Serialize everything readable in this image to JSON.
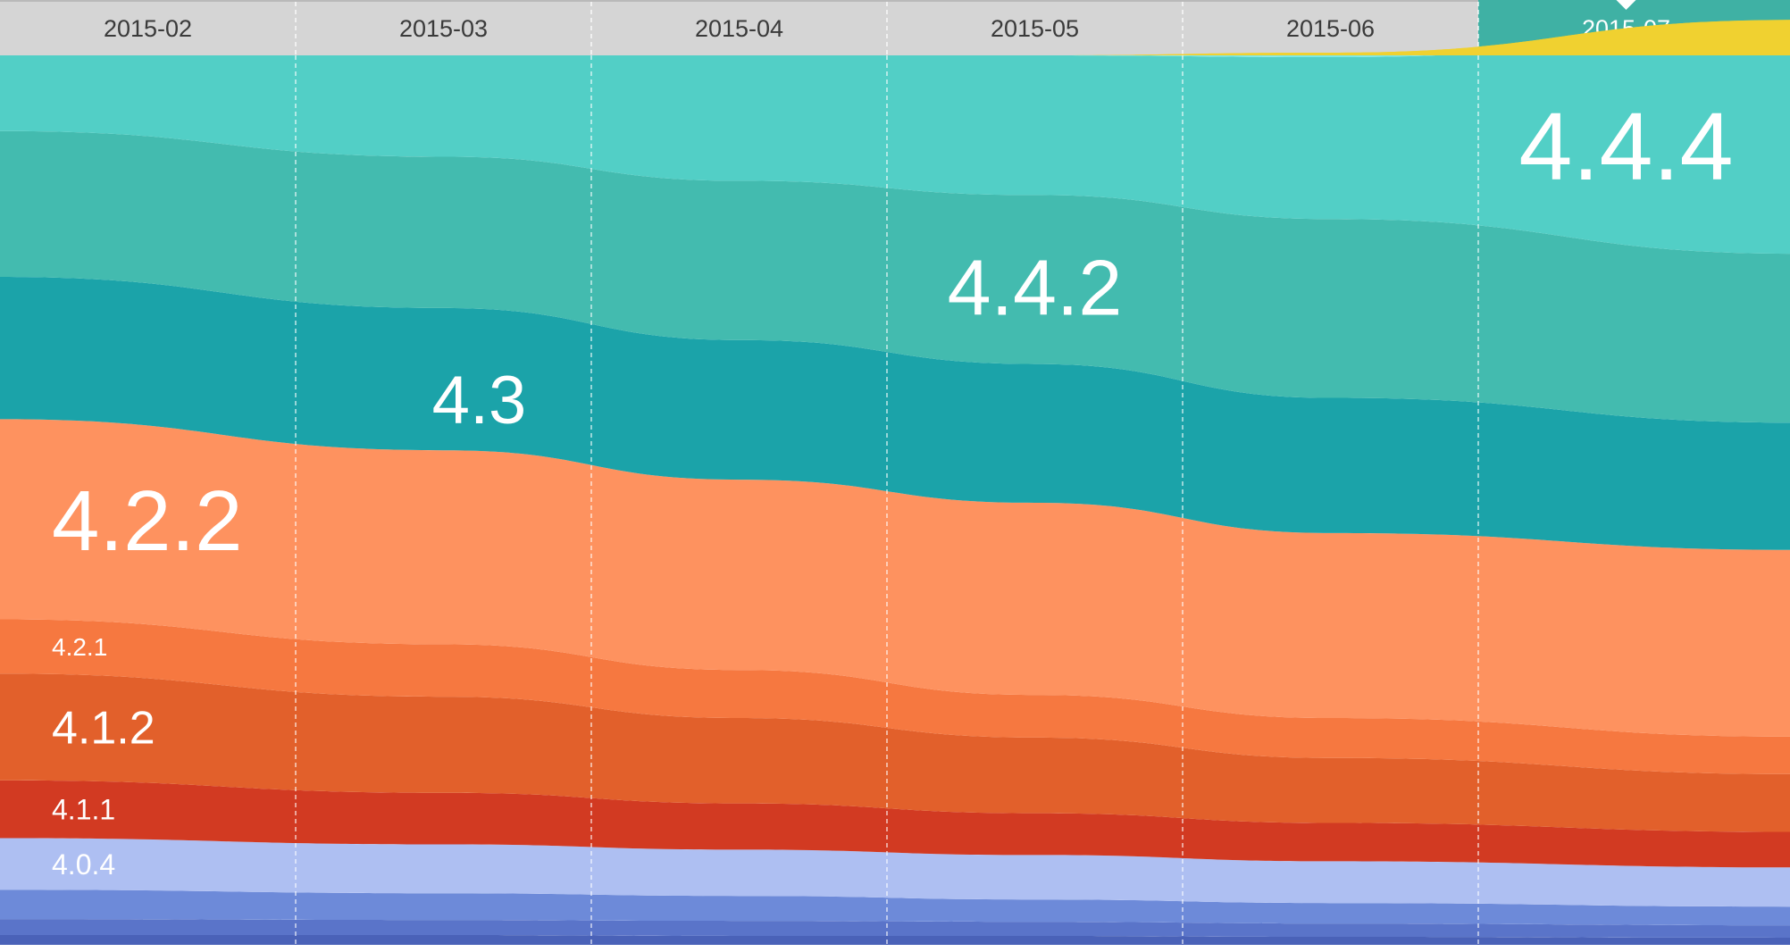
{
  "chart_data": {
    "type": "area",
    "stacked": true,
    "x": [
      "2015-02",
      "2015-03",
      "2015-04",
      "2015-05",
      "2015-06",
      "2015-07"
    ],
    "selected": "2015-07",
    "ylim": [
      0,
      100
    ],
    "grid": "vertical dashed",
    "series": [
      {
        "name": "",
        "color": "#4a62b8",
        "values": [
          1.1,
          1.1,
          1.0,
          1.0,
          0.9,
          0.8
        ]
      },
      {
        "name": "",
        "color": "#5a74c9",
        "values": [
          1.8,
          1.7,
          1.7,
          1.6,
          1.5,
          1.4
        ]
      },
      {
        "name": "",
        "color": "#6d8ad9",
        "values": [
          3.3,
          3.0,
          2.8,
          2.5,
          2.3,
          2.1
        ]
      },
      {
        "name": "4.0.4",
        "color": "#aebff2",
        "values": [
          5.8,
          5.5,
          5.2,
          5.0,
          4.7,
          4.4
        ]
      },
      {
        "name": "4.1.1",
        "color": "#d23a22",
        "values": [
          6.5,
          5.8,
          5.2,
          4.7,
          4.3,
          4.0
        ]
      },
      {
        "name": "4.1.2",
        "color": "#e2602b",
        "values": [
          12.0,
          10.8,
          9.6,
          8.5,
          7.3,
          6.5
        ]
      },
      {
        "name": "4.2.1",
        "color": "#f67840",
        "values": [
          6.1,
          5.9,
          5.4,
          4.8,
          4.5,
          4.2
        ]
      },
      {
        "name": "4.2.2",
        "color": "#fe925f",
        "values": [
          22.5,
          21.8,
          21.4,
          21.6,
          20.8,
          21.0
        ]
      },
      {
        "name": "4.3",
        "color": "#1ba3a9",
        "values": [
          16.0,
          16.0,
          15.7,
          15.6,
          15.2,
          14.3
        ]
      },
      {
        "name": "4.4.2",
        "color": "#43bbaf",
        "values": [
          16.4,
          17.0,
          17.9,
          19.0,
          20.1,
          19.0
        ]
      },
      {
        "name": "4.4.4",
        "color": "#52cfc6",
        "values": [
          8.5,
          11.4,
          14.1,
          15.7,
          18.2,
          24.5
        ]
      },
      {
        "name": "",
        "color": "#7ce8e8",
        "values": [
          0,
          0,
          0,
          0,
          0.3,
          1.1
        ]
      },
      {
        "name": "",
        "color": "#f0d130",
        "values": [
          0,
          0,
          0,
          0,
          0.2,
          0.7
        ]
      }
    ]
  },
  "colors": {
    "tab_background": "#d5d5d5",
    "tab_active": "#3fb1a4",
    "grid_line": "#ffffff",
    "label_text": "#ffffff"
  }
}
